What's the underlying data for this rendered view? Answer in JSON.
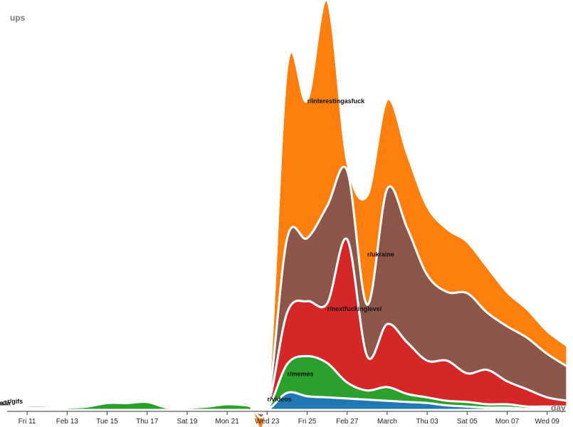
{
  "chart_data": {
    "type": "area",
    "subtype": "streamgraph",
    "ylabel": "ups",
    "xlabel": "day",
    "x_ticks": [
      "Fri 11",
      "Feb 13",
      "Tue 15",
      "Thu 17",
      "Sat 19",
      "Mon 21",
      "Wed 23",
      "Fri 25",
      "Feb 27",
      "March",
      "Thu 03",
      "Sat 05",
      "Mon 07",
      "Wed 09"
    ],
    "x": [
      "2022-02-10",
      "2022-02-11",
      "2022-02-12",
      "2022-02-13",
      "2022-02-14",
      "2022-02-15",
      "2022-02-16",
      "2022-02-17",
      "2022-02-18",
      "2022-02-19",
      "2022-02-20",
      "2022-02-21",
      "2022-02-22",
      "2022-02-23",
      "2022-02-24",
      "2022-02-25",
      "2022-02-26",
      "2022-02-27",
      "2022-02-28",
      "2022-03-01",
      "2022-03-02",
      "2022-03-03",
      "2022-03-04",
      "2022-03-05",
      "2022-03-06",
      "2022-03-07",
      "2022-03-08",
      "2022-03-09",
      "2022-03-10"
    ],
    "legend": "none",
    "grid": false,
    "series": [
      {
        "name": "r/videos",
        "color": "#1f77b4",
        "values": [
          0,
          0,
          0,
          0,
          0,
          0,
          0,
          0,
          0,
          0,
          0,
          0,
          0,
          0,
          15,
          12,
          11,
          10,
          9,
          8,
          7,
          6,
          4,
          3,
          2,
          2,
          1,
          1,
          1
        ]
      },
      {
        "name": "r/memes",
        "color": "#2ca02c",
        "values": [
          1,
          1,
          1,
          2,
          3,
          6,
          6,
          7,
          2,
          2,
          3,
          5,
          4,
          1,
          25,
          35,
          30,
          14,
          8,
          12,
          7,
          5,
          4,
          4,
          3,
          3,
          2,
          2,
          2
        ]
      },
      {
        "name": "r/nextfuckinglevel",
        "color": "#d62728",
        "values": [
          1,
          1,
          1,
          1,
          1,
          1,
          1,
          1,
          1,
          1,
          1,
          1,
          2,
          1,
          45,
          48,
          52,
          125,
          30,
          55,
          45,
          32,
          35,
          25,
          30,
          20,
          15,
          8,
          5
        ]
      },
      {
        "name": "r/ukraine",
        "color": "#8c564b",
        "values": [
          1,
          2,
          2,
          1,
          1,
          1,
          1,
          1,
          1,
          1,
          1,
          1,
          1,
          1,
          65,
          55,
          85,
          60,
          45,
          118,
          100,
          75,
          60,
          70,
          50,
          48,
          45,
          38,
          30
        ]
      },
      {
        "name": "r/interestingasfuck",
        "color": "#ff7f0e",
        "values": [
          1,
          1,
          1,
          1,
          2,
          1,
          1,
          1,
          1,
          1,
          1,
          1,
          1,
          1,
          150,
          120,
          180,
          8,
          95,
          78,
          65,
          60,
          55,
          45,
          40,
          30,
          25,
          20,
          18
        ]
      },
      {
        "name": "r/gifs",
        "color": "#9467bd",
        "values": [
          0,
          1,
          1,
          1,
          1,
          0,
          1,
          1,
          0,
          0,
          0,
          0,
          0,
          0,
          0,
          0,
          0,
          0,
          0,
          0,
          0,
          0,
          0,
          0,
          0,
          0,
          0,
          0,
          0
        ]
      },
      {
        "name": "r/russia",
        "color": "#e377c2",
        "values": [
          0,
          0,
          0,
          0,
          0,
          0,
          0,
          0,
          0,
          0,
          0,
          0,
          0,
          0,
          0,
          0,
          0,
          0,
          0,
          0,
          0,
          0,
          0,
          0,
          0,
          0,
          0,
          0,
          0
        ]
      },
      {
        "name": "r/wes3",
        "color": "#7f7f7f",
        "values": [
          0,
          0,
          0,
          0,
          0,
          0,
          0,
          0,
          0,
          0,
          0,
          0,
          0,
          0,
          0,
          0,
          0,
          0,
          0,
          0,
          0,
          0,
          0,
          0,
          0,
          0,
          0,
          0,
          0
        ]
      }
    ]
  }
}
